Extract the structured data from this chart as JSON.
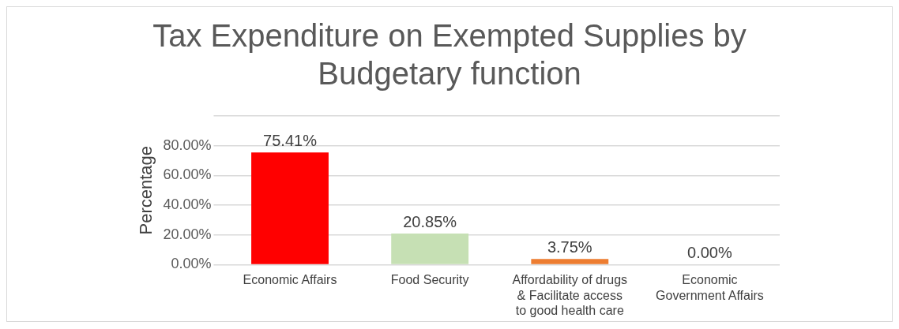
{
  "chart_data": {
    "type": "bar",
    "title": "Tax Expenditure on Exempted Supplies by Budgetary function",
    "ylabel": "Percentage",
    "categories": [
      "Economic Affairs",
      "Food Security",
      "Affordability of drugs & Facilitate access to good health care",
      "Economic Government Affairs"
    ],
    "values": [
      75.41,
      20.85,
      3.75,
      0.0
    ],
    "colors": [
      "#ff0000",
      "#c6e0b4",
      "#ed7d31",
      "#adb9ca"
    ],
    "value_labels": [
      "75.41%",
      "20.85%",
      "3.75%",
      "0.00%"
    ],
    "ylim": [
      0,
      100
    ],
    "yticks": [
      {
        "value": 0,
        "label": "0.00%"
      },
      {
        "value": 20,
        "label": "20.00%"
      },
      {
        "value": 40,
        "label": "40.00%"
      },
      {
        "value": 60,
        "label": "60.00%"
      },
      {
        "value": 80,
        "label": "80.00%"
      },
      {
        "value": 100,
        "label": null
      }
    ],
    "grid": "y",
    "legend": false
  }
}
